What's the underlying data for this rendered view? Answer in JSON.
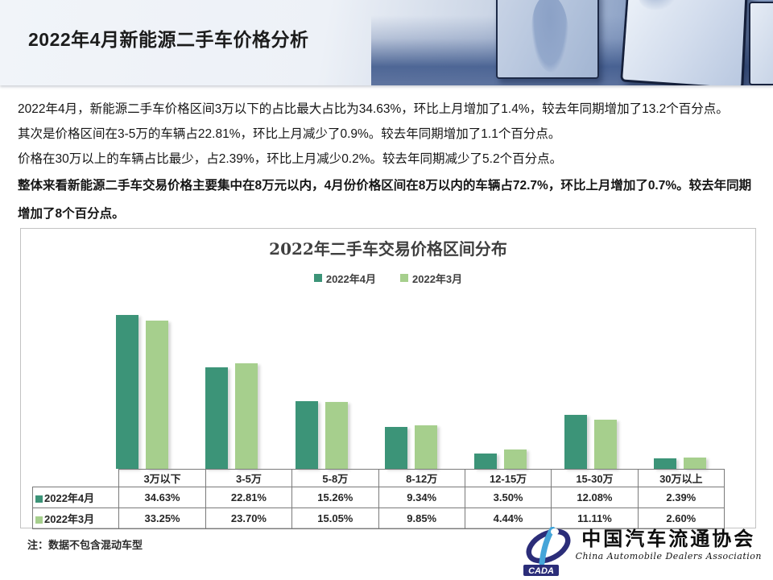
{
  "slide": {
    "title": "2022年4月新能源二手车价格分析"
  },
  "body": {
    "paragraphs": [
      "2022年4月，新能源二手车价格区间3万以下的占比最大占比为34.63%，环比上月增加了1.4%，较去年同期增加了13.2个百分点。",
      "其次是价格区间在3-5万的车辆占22.81%，环比上月减少了0.9%。较去年同期增加了1.1个百分点。",
      "价格在30万以上的车辆占比最少，占2.39%，环比上月减少0.2%。较去年同期减少了5.2个百分点。"
    ],
    "bold_paragraph": "整体来看新能源二手车交易价格主要集中在8万元以内，4月份价格区间在8万以内的车辆占72.7%，环比上月增加了0.7%。较去年同期增加了8个百分点。"
  },
  "chart_data": {
    "type": "bar",
    "title": "2022年二手车交易价格区间分布",
    "categories": [
      "3万以下",
      "3-5万",
      "5-8万",
      "8-12万",
      "12-15万",
      "15-30万",
      "30万以上"
    ],
    "series": [
      {
        "name": "2022年4月",
        "color": "#3C9478",
        "values": [
          34.63,
          22.81,
          15.26,
          9.34,
          3.5,
          12.08,
          2.39
        ]
      },
      {
        "name": "2022年3月",
        "color": "#A6CF8D",
        "values": [
          33.25,
          23.7,
          15.05,
          9.85,
          4.44,
          11.11,
          2.6
        ]
      }
    ],
    "value_suffix": "%",
    "ylim": [
      0,
      35.5
    ],
    "grid": false,
    "legend_position": "top-center",
    "data_table_shown": true
  },
  "table": {
    "corner": "",
    "columns": [
      "3万以下",
      "3-5万",
      "5-8万",
      "8-12万",
      "12-15万",
      "15-30万",
      "30万以上"
    ],
    "rows": [
      {
        "label": "2022年4月",
        "values": [
          "34.63%",
          "22.81%",
          "15.26%",
          "9.34%",
          "3.50%",
          "12.08%",
          "2.39%"
        ]
      },
      {
        "label": "2022年3月",
        "values": [
          "33.25%",
          "23.70%",
          "15.05%",
          "9.85%",
          "4.44%",
          "11.11%",
          "2.60%"
        ]
      }
    ]
  },
  "note": "注：数据不包含混动车型",
  "logo": {
    "acronym": "CADA",
    "name_cn": "中国汽车流通协会",
    "name_en": "China Automobile Dealers Association",
    "colors": {
      "navy": "#2b2d79",
      "blue": "#45a5d9"
    }
  }
}
